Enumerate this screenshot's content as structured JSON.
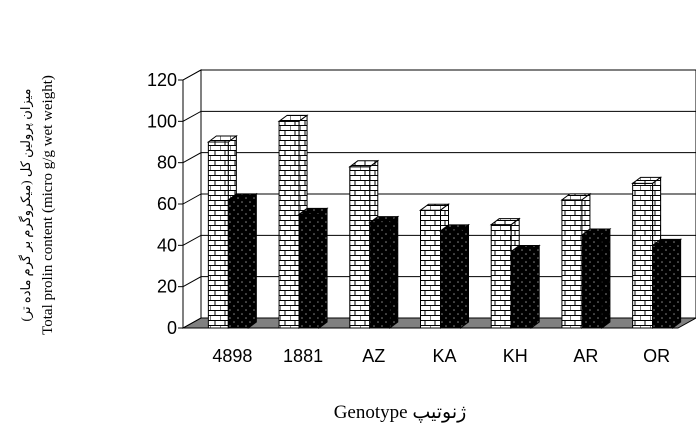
{
  "chart_data": {
    "type": "bar3d",
    "y_label": [
      "میزان پرولین کل (میکروگرم بر گرم ماده تر)",
      "Total prolin content (micro g/g wet weight)"
    ],
    "x_label": "Genotype ژنوتیپ",
    "categories": [
      "4898",
      "1881",
      "AZ",
      "KA",
      "KH",
      "AR",
      "OR"
    ],
    "series": [
      {
        "color": "#ffffff",
        "values": [
          90,
          100,
          78,
          57,
          50,
          62,
          70
        ]
      },
      {
        "color": "#000000",
        "values": [
          62,
          55,
          51,
          47,
          37,
          45,
          40
        ]
      }
    ],
    "ylim": [
      0,
      120
    ],
    "yticks": [
      0,
      20,
      40,
      60,
      80,
      100,
      120
    ],
    "grid": true
  }
}
